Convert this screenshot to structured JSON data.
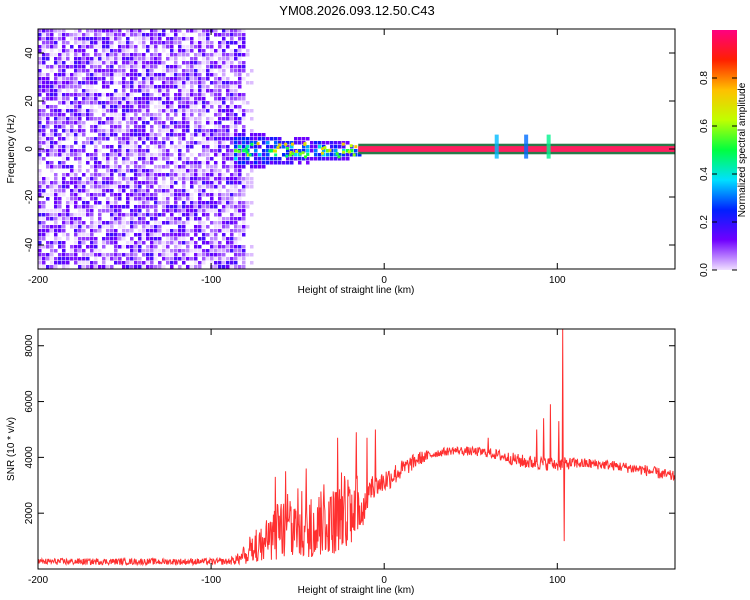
{
  "title": "YM08.2026.093.12.50.C43",
  "chart_data": [
    {
      "type": "heatmap",
      "xlabel": "Height of straight line (km)",
      "ylabel": "Frequency (Hz)",
      "xlim": [
        -200,
        168
      ],
      "ylim": [
        -50,
        50
      ],
      "xticks": [
        -200,
        -100,
        0,
        100
      ],
      "yticks": [
        -40,
        -20,
        0,
        20,
        40
      ],
      "grid": false,
      "colorbar": {
        "label": "Normalized spectral amplitude",
        "range": [
          0,
          1
        ],
        "ticks": [
          "0.0",
          "0.2",
          "0.4",
          "0.6",
          "0.8"
        ],
        "colors": [
          "#f0e0ff",
          "#7000ff",
          "#0020ff",
          "#00e0ff",
          "#00ff40",
          "#c0ff00",
          "#ffc000",
          "#ff2000",
          "#ff0080"
        ]
      },
      "regions": [
        {
          "name": "broadband noise",
          "x": [
            -200,
            -82
          ],
          "freq": [
            -50,
            50
          ],
          "amplitude": 0.1
        },
        {
          "name": "transition cluster",
          "x": [
            -88,
            -15
          ],
          "freq": [
            -8,
            8
          ],
          "amplitude": 0.45
        },
        {
          "name": "narrow line",
          "x": [
            -15,
            168
          ],
          "freq": [
            -1,
            1
          ],
          "amplitude": 0.95
        }
      ]
    },
    {
      "type": "line",
      "xlabel": "Height of straight line (km)",
      "ylabel": "SNR (10 * v/v)",
      "xlim": [
        -200,
        168
      ],
      "ylim": [
        0,
        8600
      ],
      "xticks": [
        -200,
        -100,
        0,
        100
      ],
      "yticks": [
        2000,
        4000,
        6000,
        8000
      ],
      "color": "#ff3030",
      "grid": false,
      "envelope": [
        {
          "x": -200,
          "low": 150,
          "high": 380
        },
        {
          "x": -90,
          "low": 150,
          "high": 380
        },
        {
          "x": -82,
          "low": 150,
          "high": 650
        },
        {
          "x": -70,
          "low": 200,
          "high": 1600
        },
        {
          "x": -60,
          "low": 250,
          "high": 2100
        },
        {
          "x": -50,
          "low": 300,
          "high": 2400
        },
        {
          "x": -40,
          "low": 400,
          "high": 2700
        },
        {
          "x": -30,
          "low": 500,
          "high": 3000
        },
        {
          "x": -20,
          "low": 800,
          "high": 3000
        },
        {
          "x": -12,
          "low": 1500,
          "high": 3000
        },
        {
          "x": -8,
          "low": 2500,
          "high": 3200
        },
        {
          "x": 0,
          "low": 2700,
          "high": 3600
        },
        {
          "x": 10,
          "low": 3200,
          "high": 3900
        },
        {
          "x": 20,
          "low": 3700,
          "high": 4200
        },
        {
          "x": 30,
          "low": 4000,
          "high": 4300
        },
        {
          "x": 40,
          "low": 4100,
          "high": 4400
        },
        {
          "x": 60,
          "low": 4000,
          "high": 4350
        },
        {
          "x": 80,
          "low": 3600,
          "high": 4100
        },
        {
          "x": 100,
          "low": 3500,
          "high": 4000
        },
        {
          "x": 110,
          "low": 3600,
          "high": 4000
        },
        {
          "x": 130,
          "low": 3550,
          "high": 3900
        },
        {
          "x": 150,
          "low": 3350,
          "high": 3750
        },
        {
          "x": 168,
          "low": 3100,
          "high": 3500
        }
      ],
      "spikes": [
        {
          "x": -63,
          "y": 3300
        },
        {
          "x": -57,
          "y": 3500
        },
        {
          "x": -45,
          "y": 3600
        },
        {
          "x": -27,
          "y": 4700
        },
        {
          "x": -21,
          "y": 3200
        },
        {
          "x": -16,
          "y": 4900
        },
        {
          "x": -10,
          "y": 4700
        },
        {
          "x": -5,
          "y": 5000
        },
        {
          "x": 60,
          "y": 4700
        },
        {
          "x": 88,
          "y": 5000
        },
        {
          "x": 92,
          "y": 5400
        },
        {
          "x": 96,
          "y": 5900
        },
        {
          "x": 101,
          "y": 5300
        },
        {
          "x": 103,
          "y": 8600
        },
        {
          "x": 104,
          "y": 1000
        }
      ]
    }
  ]
}
